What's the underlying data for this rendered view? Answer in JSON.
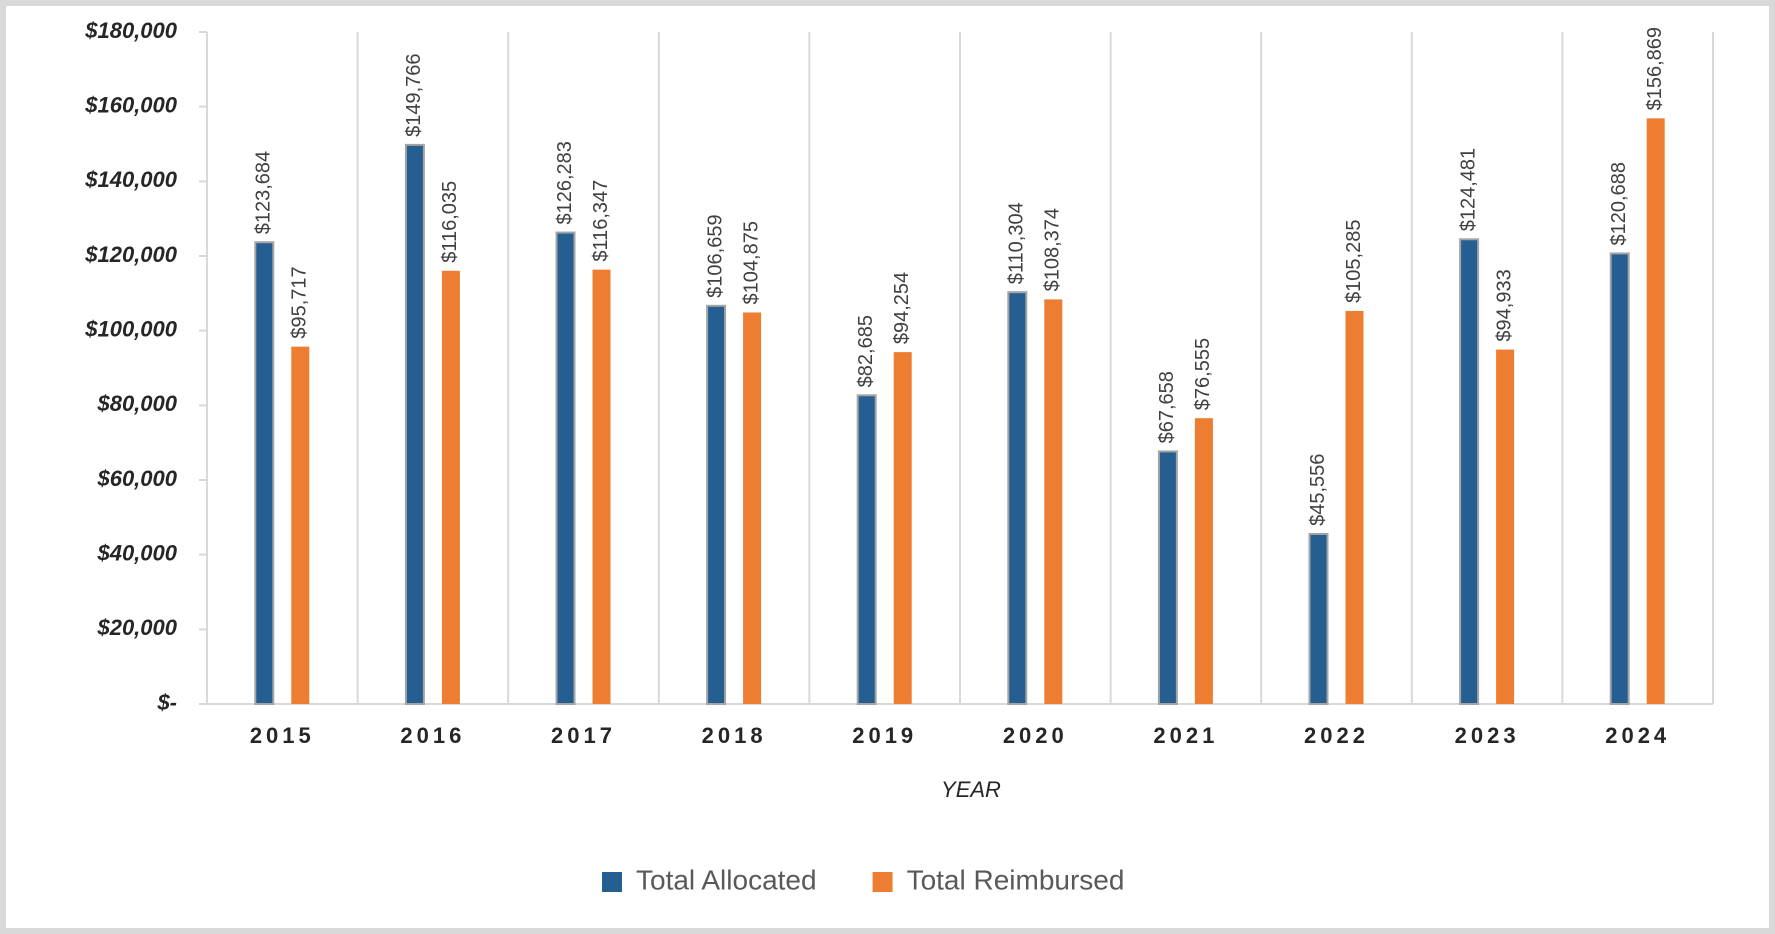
{
  "chart_data": {
    "type": "bar",
    "x_label": "YEAR",
    "categories": [
      "2015",
      "2016",
      "2017",
      "2018",
      "2019",
      "2020",
      "2021",
      "2022",
      "2023",
      "2024"
    ],
    "series": [
      {
        "name": "Total Allocated",
        "color": "#255e91",
        "values": [
          123684,
          149766,
          126283,
          106659,
          82685,
          110304,
          67658,
          45556,
          124481,
          120688
        ],
        "value_labels": [
          "$123,684",
          "$149,766",
          "$126,283",
          "$106,659",
          "$82,685",
          "$110,304",
          "$67,658",
          "$45,556",
          "$124,481",
          "$120,688"
        ]
      },
      {
        "name": "Total Reimbursed",
        "color": "#ed7d31",
        "values": [
          95717,
          116035,
          116347,
          104875,
          94254,
          108374,
          76555,
          105285,
          94933,
          156869
        ],
        "value_labels": [
          "$95,717",
          "$116,035",
          "$116,347",
          "$104,875",
          "$94,254",
          "$108,374",
          "$76,555",
          "$105,285",
          "$94,933",
          "$156,869"
        ]
      }
    ],
    "ylim": [
      0,
      180000
    ],
    "yticks": [
      {
        "value": 0,
        "label": "$-"
      },
      {
        "value": 20000,
        "label": "$20,000"
      },
      {
        "value": 40000,
        "label": "$40,000"
      },
      {
        "value": 60000,
        "label": "$60,000"
      },
      {
        "value": 80000,
        "label": "$80,000"
      },
      {
        "value": 100000,
        "label": "$100,000"
      },
      {
        "value": 120000,
        "label": "$120,000"
      },
      {
        "value": 140000,
        "label": "$140,000"
      },
      {
        "value": 160000,
        "label": "$160,000"
      },
      {
        "value": 180000,
        "label": "$180,000"
      }
    ],
    "grid": true,
    "legend": "bottom"
  }
}
